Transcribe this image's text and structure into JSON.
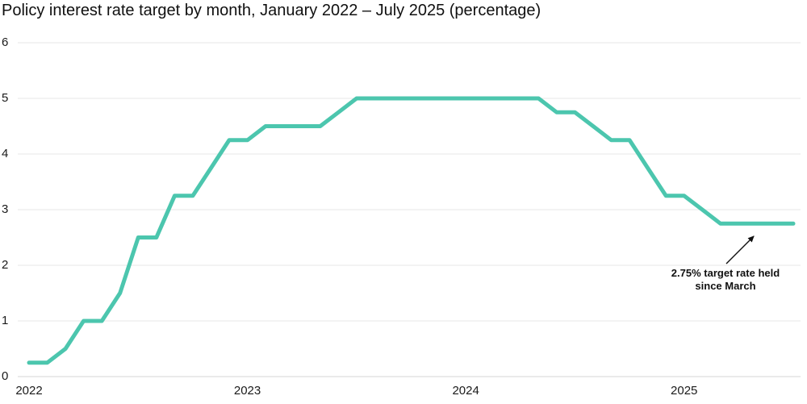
{
  "chart_data": {
    "type": "line",
    "title": "Policy interest rate target by month, January 2022 – July 2025 (percentage)",
    "xlabel": "",
    "ylabel": "",
    "ylim": [
      0,
      6
    ],
    "yticks": [
      0,
      1,
      2,
      3,
      4,
      5,
      6
    ],
    "grid": "horizontal",
    "legend": "none",
    "months": [
      "Jan 2022",
      "Feb 2022",
      "Mar 2022",
      "Apr 2022",
      "May 2022",
      "Jun 2022",
      "Jul 2022",
      "Aug 2022",
      "Sep 2022",
      "Oct 2022",
      "Nov 2022",
      "Dec 2022",
      "Jan 2023",
      "Feb 2023",
      "Mar 2023",
      "Apr 2023",
      "May 2023",
      "Jun 2023",
      "Jul 2023",
      "Aug 2023",
      "Sep 2023",
      "Oct 2023",
      "Nov 2023",
      "Dec 2023",
      "Jan 2024",
      "Feb 2024",
      "Mar 2024",
      "Apr 2024",
      "May 2024",
      "Jun 2024",
      "Jul 2024",
      "Aug 2024",
      "Sep 2024",
      "Oct 2024",
      "Nov 2024",
      "Dec 2024",
      "Jan 2025",
      "Feb 2025",
      "Mar 2025",
      "Apr 2025",
      "May 2025",
      "Jun 2025",
      "Jul 2025"
    ],
    "values": [
      0.25,
      0.25,
      0.5,
      1.0,
      1.0,
      1.5,
      2.5,
      2.5,
      3.25,
      3.25,
      3.75,
      4.25,
      4.25,
      4.5,
      4.5,
      4.5,
      4.5,
      4.75,
      5.0,
      5.0,
      5.0,
      5.0,
      5.0,
      5.0,
      5.0,
      5.0,
      5.0,
      5.0,
      5.0,
      4.75,
      4.75,
      4.5,
      4.25,
      4.25,
      3.75,
      3.25,
      3.25,
      3.0,
      2.75,
      2.75,
      2.75,
      2.75,
      2.75
    ],
    "year_labels": [
      {
        "label": "2022",
        "month_index": 0
      },
      {
        "label": "2023",
        "month_index": 12
      },
      {
        "label": "2024",
        "month_index": 24
      },
      {
        "label": "2025",
        "month_index": 36
      }
    ],
    "annotation": {
      "lines": [
        "2.75% target rate held",
        "since March"
      ],
      "full_text": "2.75% target rate held since March",
      "points_to_value": 2.75
    },
    "colors": {
      "line": "#4CC6AE",
      "grid": "#E7E7E7",
      "zero_line": "#D6D6D6",
      "text": "#1A1A1A",
      "arrow": "#111111",
      "background": "#FFFFFF"
    }
  }
}
